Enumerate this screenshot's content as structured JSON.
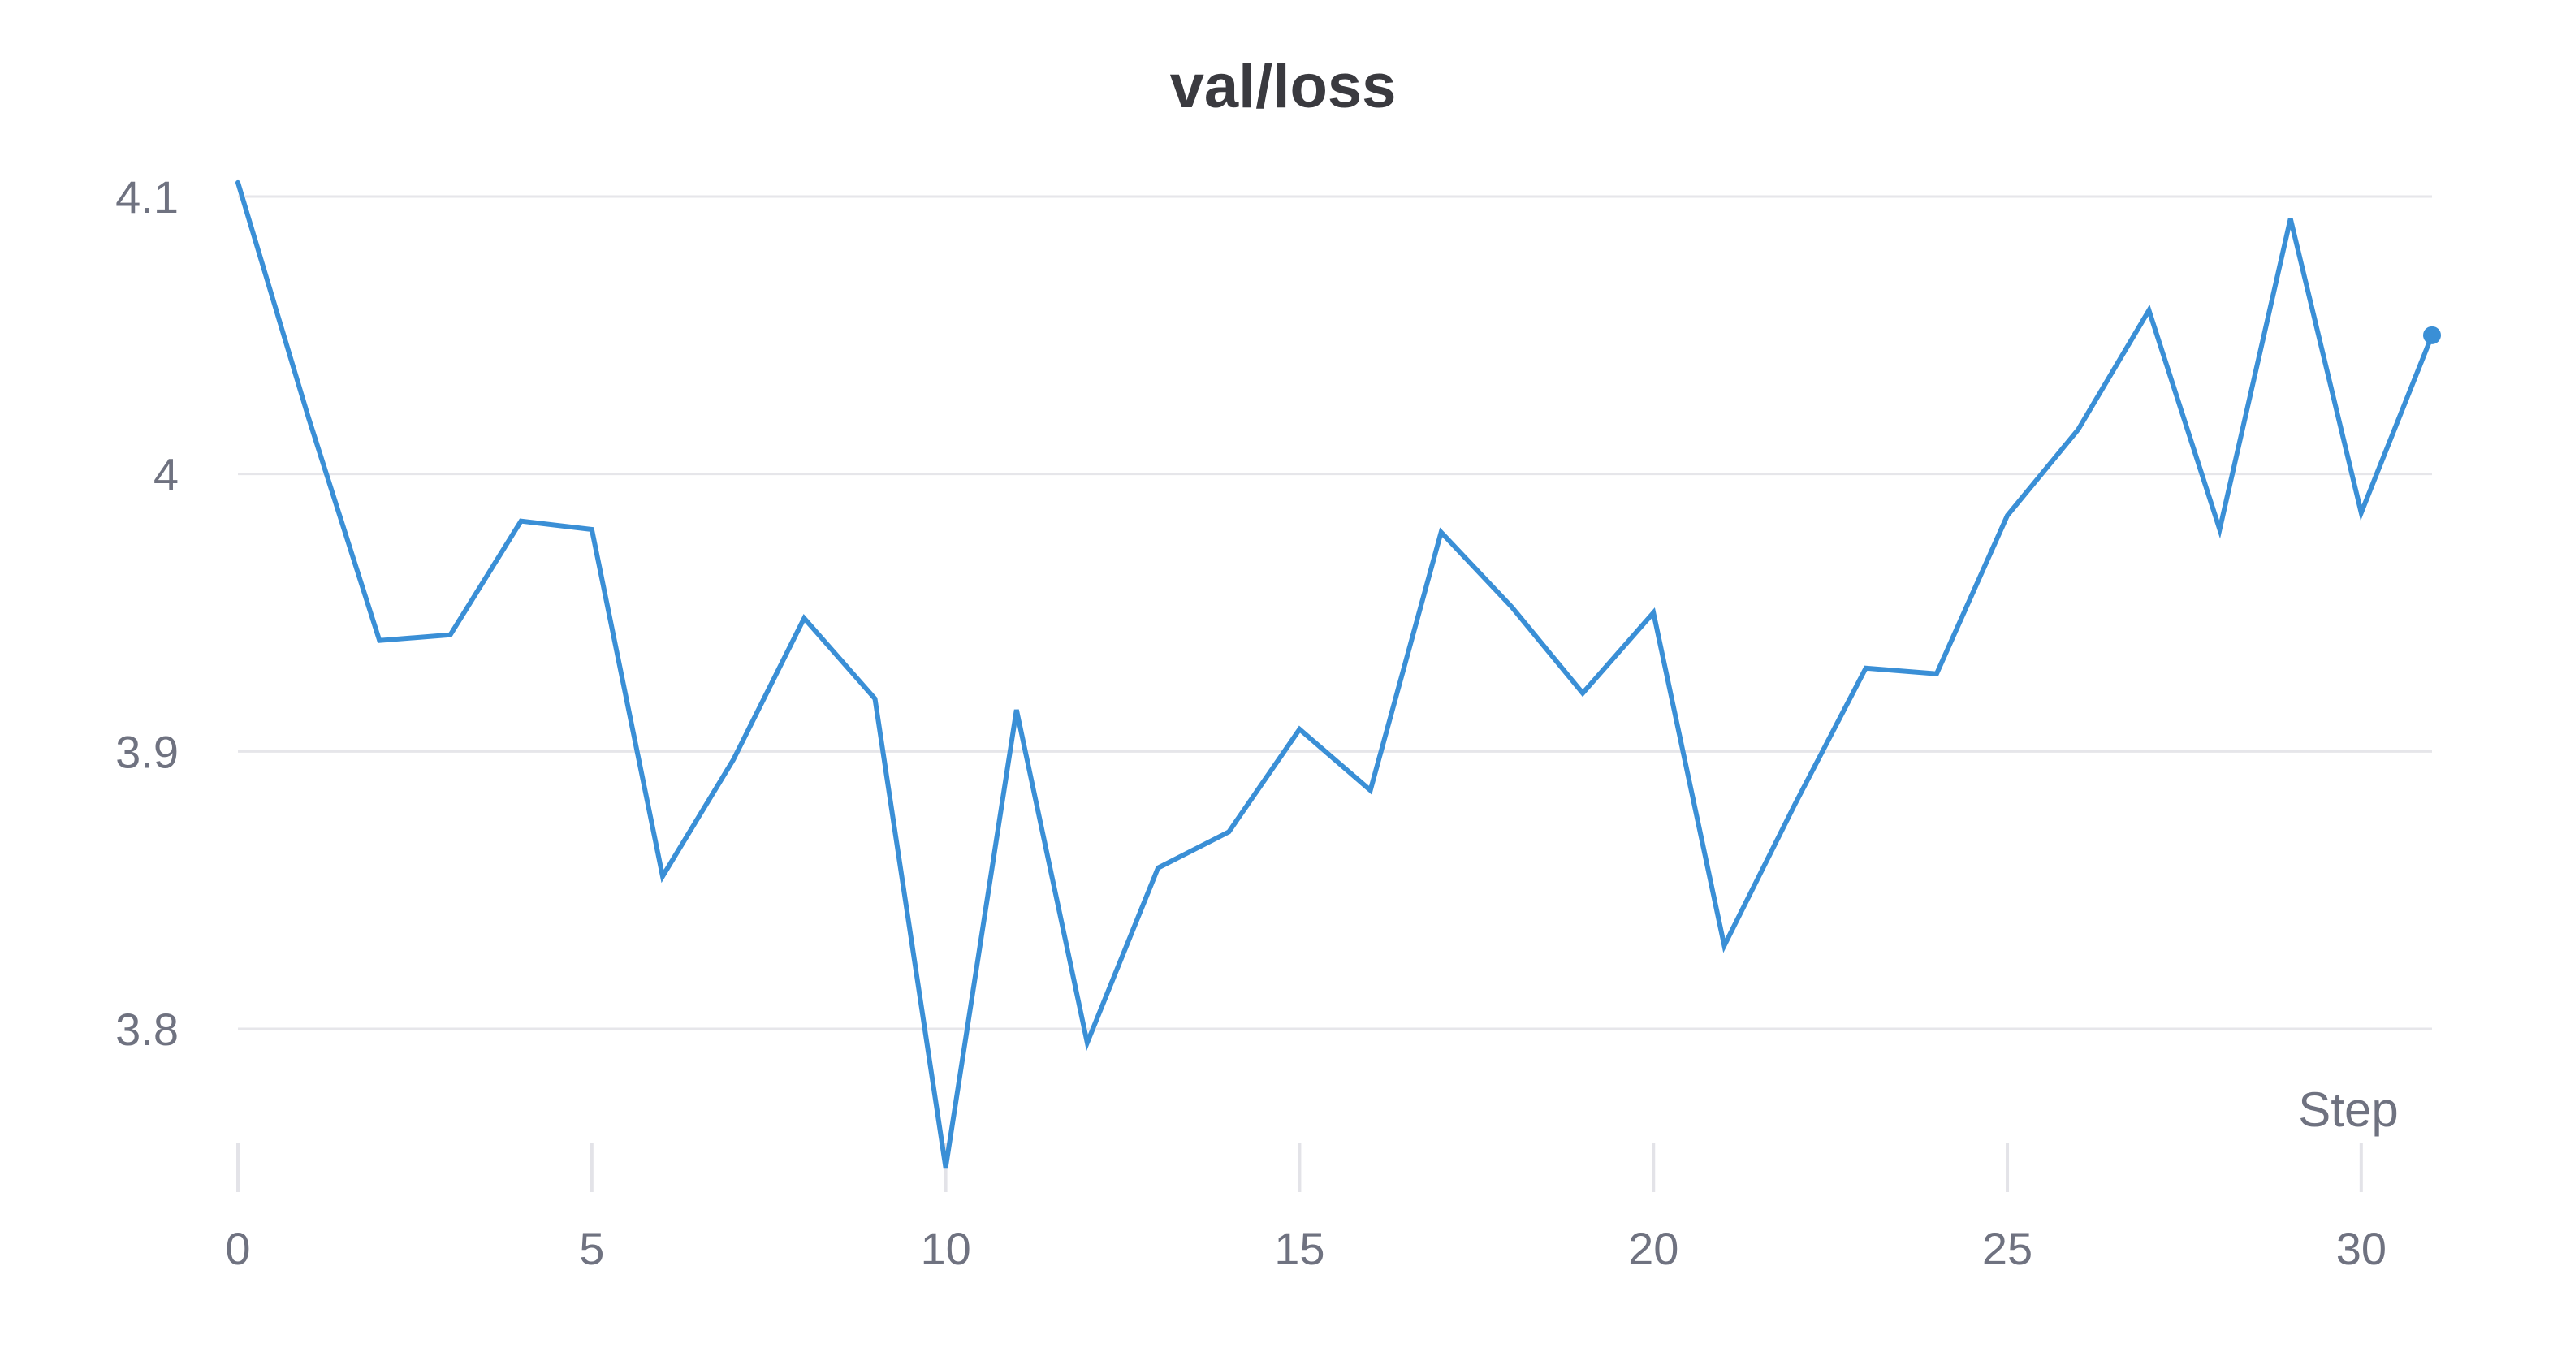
{
  "chart_data": {
    "type": "line",
    "title": "val/loss",
    "xlabel": "Step",
    "ylabel": "",
    "xlim": [
      0,
      31
    ],
    "ylim": [
      3.75,
      4.105
    ],
    "x_ticks": [
      0,
      5,
      10,
      15,
      20,
      25,
      30
    ],
    "y_ticks": [
      3.8,
      3.9,
      4.0,
      4.1
    ],
    "y_tick_labels": [
      "3.8",
      "3.9",
      "4",
      "4.1"
    ],
    "grid": {
      "horizontal": true,
      "vertical": false
    },
    "legend": "none",
    "series": [
      {
        "color": "#3a8fd6",
        "end_marker": true,
        "x": [
          0,
          1,
          2,
          3,
          4,
          5,
          6,
          7,
          8,
          9,
          10,
          11,
          12,
          13,
          14,
          15,
          16,
          17,
          18,
          19,
          20,
          21,
          22,
          23,
          24,
          25,
          26,
          27,
          28,
          29,
          30,
          31
        ],
        "values": [
          4.105,
          4.02,
          3.94,
          3.942,
          3.983,
          3.98,
          3.855,
          3.897,
          3.948,
          3.919,
          3.75,
          3.915,
          3.795,
          3.858,
          3.871,
          3.908,
          3.886,
          3.979,
          3.952,
          3.921,
          3.95,
          3.83,
          3.881,
          3.93,
          3.928,
          3.985,
          4.016,
          4.059,
          3.98,
          4.092,
          3.986,
          4.05
        ]
      }
    ]
  }
}
